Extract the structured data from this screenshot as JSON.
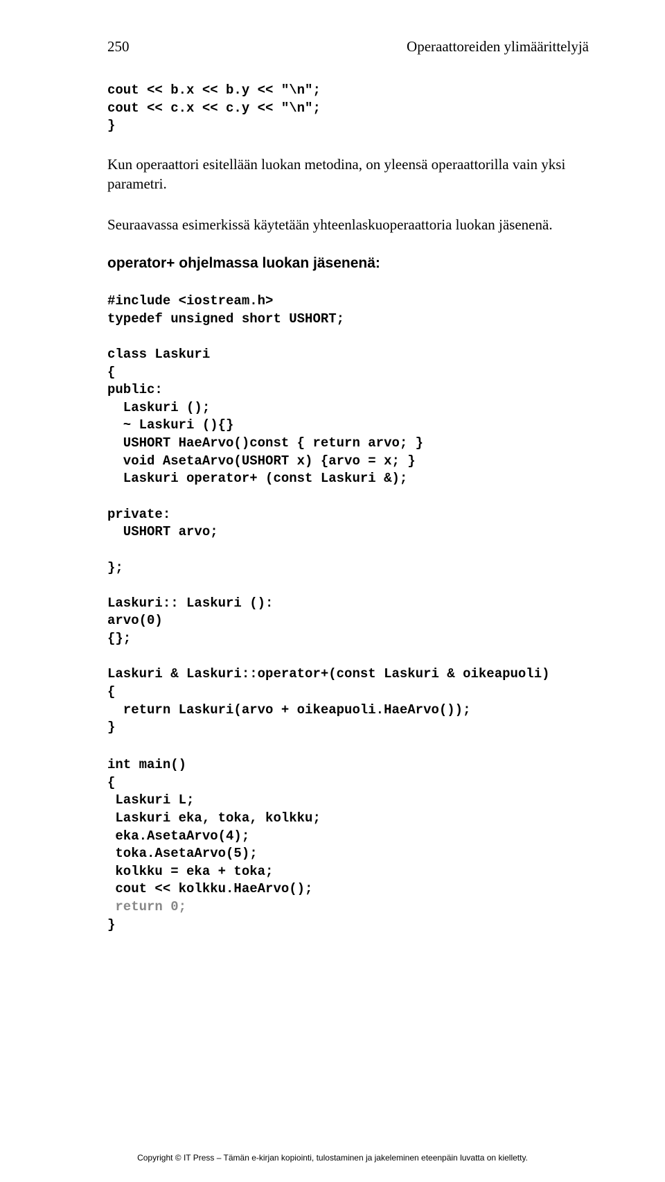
{
  "header": {
    "page_number": "250",
    "chapter_title": "Operaattoreiden ylimäärittelyjä"
  },
  "code1": "cout << b.x << b.y << \"\\n\";\ncout << c.x << c.y << \"\\n\";\n}",
  "para1": "Kun operaattori esitellään luokan metodina, on yleensä operaattorilla vain yksi parametri.",
  "para2": "Seuraavassa esimerkissä käytetään yhteenlaskuoperaattoria luokan jäsenenä.",
  "heading": "operator+ ohjelmassa luokan jäsenenä:",
  "code2_part1": "#include <iostream.h>\ntypedef unsigned short USHORT;\n\nclass Laskuri\n{\npublic:\n  Laskuri ();\n  ~ Laskuri (){}\n  USHORT HaeArvo()const { return arvo; }\n  void AsetaArvo(USHORT x) {arvo = x; }\n  Laskuri operator+ (const Laskuri &);\n\nprivate:\n  USHORT arvo;\n\n};\n\nLaskuri:: Laskuri ():\narvo(0)\n{};\n\nLaskuri & Laskuri::operator+(const Laskuri & oikeapuoli)\n{\n  return Laskuri(arvo + oikeapuoli.HaeArvo());\n}",
  "code2_part2a": "int main()\n{\n Laskuri L;\n Laskuri eka, toka, kolkku;\n eka.AsetaArvo(4);\n toka.AsetaArvo(5);\n kolkku = eka + toka;\n cout << kolkku.HaeArvo();\n",
  "code2_faded": " return 0;",
  "code2_part2b": "\n}",
  "copyright": "Copyright © IT Press – Tämän e-kirjan kopiointi, tulostaminen ja jakeleminen eteenpäin luvatta on kielletty."
}
